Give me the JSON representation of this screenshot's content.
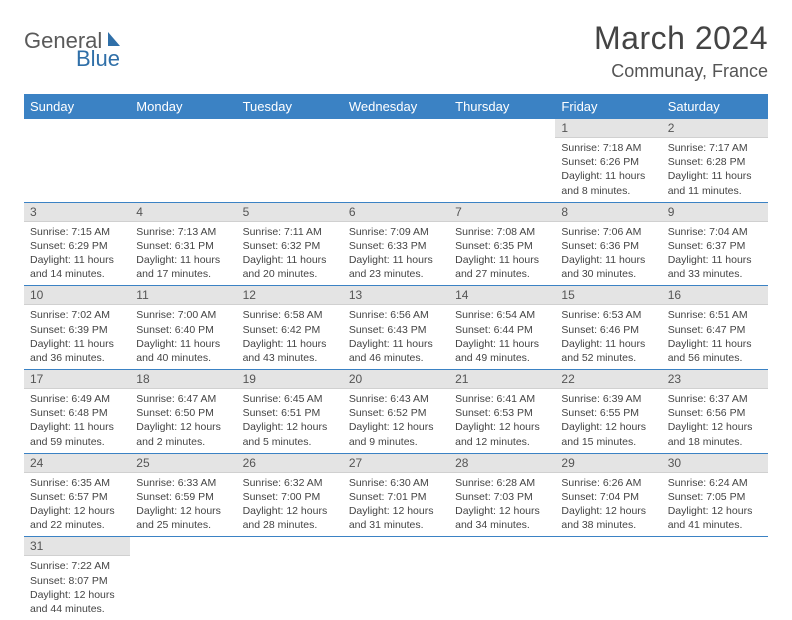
{
  "logo": {
    "part1": "General",
    "part2": "Blue"
  },
  "title": "March 2024",
  "location": "Communay, France",
  "colors": {
    "header_bg": "#3b82c4",
    "header_fg": "#ffffff",
    "daynum_bg": "#e4e4e4",
    "row_border": "#3b82c4",
    "text": "#444444"
  },
  "days_of_week": [
    "Sunday",
    "Monday",
    "Tuesday",
    "Wednesday",
    "Thursday",
    "Friday",
    "Saturday"
  ],
  "weeks": [
    [
      null,
      null,
      null,
      null,
      null,
      {
        "n": "1",
        "sr": "Sunrise: 7:18 AM",
        "ss": "Sunset: 6:26 PM",
        "dl": "Daylight: 11 hours and 8 minutes."
      },
      {
        "n": "2",
        "sr": "Sunrise: 7:17 AM",
        "ss": "Sunset: 6:28 PM",
        "dl": "Daylight: 11 hours and 11 minutes."
      }
    ],
    [
      {
        "n": "3",
        "sr": "Sunrise: 7:15 AM",
        "ss": "Sunset: 6:29 PM",
        "dl": "Daylight: 11 hours and 14 minutes."
      },
      {
        "n": "4",
        "sr": "Sunrise: 7:13 AM",
        "ss": "Sunset: 6:31 PM",
        "dl": "Daylight: 11 hours and 17 minutes."
      },
      {
        "n": "5",
        "sr": "Sunrise: 7:11 AM",
        "ss": "Sunset: 6:32 PM",
        "dl": "Daylight: 11 hours and 20 minutes."
      },
      {
        "n": "6",
        "sr": "Sunrise: 7:09 AM",
        "ss": "Sunset: 6:33 PM",
        "dl": "Daylight: 11 hours and 23 minutes."
      },
      {
        "n": "7",
        "sr": "Sunrise: 7:08 AM",
        "ss": "Sunset: 6:35 PM",
        "dl": "Daylight: 11 hours and 27 minutes."
      },
      {
        "n": "8",
        "sr": "Sunrise: 7:06 AM",
        "ss": "Sunset: 6:36 PM",
        "dl": "Daylight: 11 hours and 30 minutes."
      },
      {
        "n": "9",
        "sr": "Sunrise: 7:04 AM",
        "ss": "Sunset: 6:37 PM",
        "dl": "Daylight: 11 hours and 33 minutes."
      }
    ],
    [
      {
        "n": "10",
        "sr": "Sunrise: 7:02 AM",
        "ss": "Sunset: 6:39 PM",
        "dl": "Daylight: 11 hours and 36 minutes."
      },
      {
        "n": "11",
        "sr": "Sunrise: 7:00 AM",
        "ss": "Sunset: 6:40 PM",
        "dl": "Daylight: 11 hours and 40 minutes."
      },
      {
        "n": "12",
        "sr": "Sunrise: 6:58 AM",
        "ss": "Sunset: 6:42 PM",
        "dl": "Daylight: 11 hours and 43 minutes."
      },
      {
        "n": "13",
        "sr": "Sunrise: 6:56 AM",
        "ss": "Sunset: 6:43 PM",
        "dl": "Daylight: 11 hours and 46 minutes."
      },
      {
        "n": "14",
        "sr": "Sunrise: 6:54 AM",
        "ss": "Sunset: 6:44 PM",
        "dl": "Daylight: 11 hours and 49 minutes."
      },
      {
        "n": "15",
        "sr": "Sunrise: 6:53 AM",
        "ss": "Sunset: 6:46 PM",
        "dl": "Daylight: 11 hours and 52 minutes."
      },
      {
        "n": "16",
        "sr": "Sunrise: 6:51 AM",
        "ss": "Sunset: 6:47 PM",
        "dl": "Daylight: 11 hours and 56 minutes."
      }
    ],
    [
      {
        "n": "17",
        "sr": "Sunrise: 6:49 AM",
        "ss": "Sunset: 6:48 PM",
        "dl": "Daylight: 11 hours and 59 minutes."
      },
      {
        "n": "18",
        "sr": "Sunrise: 6:47 AM",
        "ss": "Sunset: 6:50 PM",
        "dl": "Daylight: 12 hours and 2 minutes."
      },
      {
        "n": "19",
        "sr": "Sunrise: 6:45 AM",
        "ss": "Sunset: 6:51 PM",
        "dl": "Daylight: 12 hours and 5 minutes."
      },
      {
        "n": "20",
        "sr": "Sunrise: 6:43 AM",
        "ss": "Sunset: 6:52 PM",
        "dl": "Daylight: 12 hours and 9 minutes."
      },
      {
        "n": "21",
        "sr": "Sunrise: 6:41 AM",
        "ss": "Sunset: 6:53 PM",
        "dl": "Daylight: 12 hours and 12 minutes."
      },
      {
        "n": "22",
        "sr": "Sunrise: 6:39 AM",
        "ss": "Sunset: 6:55 PM",
        "dl": "Daylight: 12 hours and 15 minutes."
      },
      {
        "n": "23",
        "sr": "Sunrise: 6:37 AM",
        "ss": "Sunset: 6:56 PM",
        "dl": "Daylight: 12 hours and 18 minutes."
      }
    ],
    [
      {
        "n": "24",
        "sr": "Sunrise: 6:35 AM",
        "ss": "Sunset: 6:57 PM",
        "dl": "Daylight: 12 hours and 22 minutes."
      },
      {
        "n": "25",
        "sr": "Sunrise: 6:33 AM",
        "ss": "Sunset: 6:59 PM",
        "dl": "Daylight: 12 hours and 25 minutes."
      },
      {
        "n": "26",
        "sr": "Sunrise: 6:32 AM",
        "ss": "Sunset: 7:00 PM",
        "dl": "Daylight: 12 hours and 28 minutes."
      },
      {
        "n": "27",
        "sr": "Sunrise: 6:30 AM",
        "ss": "Sunset: 7:01 PM",
        "dl": "Daylight: 12 hours and 31 minutes."
      },
      {
        "n": "28",
        "sr": "Sunrise: 6:28 AM",
        "ss": "Sunset: 7:03 PM",
        "dl": "Daylight: 12 hours and 34 minutes."
      },
      {
        "n": "29",
        "sr": "Sunrise: 6:26 AM",
        "ss": "Sunset: 7:04 PM",
        "dl": "Daylight: 12 hours and 38 minutes."
      },
      {
        "n": "30",
        "sr": "Sunrise: 6:24 AM",
        "ss": "Sunset: 7:05 PM",
        "dl": "Daylight: 12 hours and 41 minutes."
      }
    ],
    [
      {
        "n": "31",
        "sr": "Sunrise: 7:22 AM",
        "ss": "Sunset: 8:07 PM",
        "dl": "Daylight: 12 hours and 44 minutes."
      },
      null,
      null,
      null,
      null,
      null,
      null
    ]
  ]
}
